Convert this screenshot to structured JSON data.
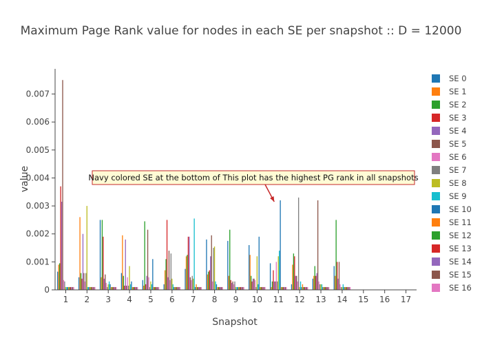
{
  "chart_data": {
    "type": "bar",
    "title": "Maximum Page Rank value for nodes in each SE per snapshot :: D = 12000",
    "xlabel": "Snapshot",
    "ylabel": "value",
    "categories": [
      "1",
      "2",
      "3",
      "4",
      "5",
      "6",
      "7",
      "8",
      "9",
      "10",
      "11",
      "12",
      "13",
      "14",
      "15",
      "16",
      "17"
    ],
    "ylim": [
      0,
      0.0079
    ],
    "yticks": [
      0,
      0.001,
      0.002,
      0.003,
      0.004,
      0.005,
      0.006,
      0.007
    ],
    "ytick_labels": [
      "0",
      "0.001",
      "0.002",
      "0.003",
      "0.004",
      "0.005",
      "0.006",
      "0.007"
    ],
    "grid": false,
    "legend": "right",
    "series": [
      {
        "name": "SE 0",
        "color": "#1f77b4",
        "values": [
          0.00065,
          0.00045,
          0.0025,
          0.0006,
          0.00035,
          0.0002,
          0.00075,
          0.0018,
          0.00175,
          0.0016,
          0.00095,
          0.0002,
          0.0004,
          0.00085,
          0,
          0,
          0
        ]
      },
      {
        "name": "SE 1",
        "color": "#ff7f0e",
        "values": [
          0.0009,
          0.0026,
          0.00045,
          0.00195,
          0.00015,
          0.0007,
          0.0012,
          0.00055,
          0.0005,
          0.00125,
          0.0001,
          0.0009,
          0.0005,
          0.0005,
          0,
          0,
          0
        ]
      },
      {
        "name": "SE 2",
        "color": "#2ca02c",
        "values": [
          0.00095,
          0.0006,
          0.0025,
          0.0005,
          0.00245,
          0.0011,
          0.00125,
          0.00065,
          0.00215,
          0.0005,
          0.0003,
          0.0013,
          0.00085,
          0.0025,
          0,
          0,
          0
        ]
      },
      {
        "name": "SE 3",
        "color": "#d62728",
        "values": [
          0.0037,
          0.0004,
          0.0019,
          0.00015,
          0.0002,
          0.0025,
          0.0019,
          0.0007,
          0.00035,
          0.0003,
          0.0007,
          0.0012,
          0.0005,
          0.001,
          0,
          0,
          0
        ]
      },
      {
        "name": "SE 4",
        "color": "#9467bd",
        "values": [
          0.00315,
          0.002,
          0.0004,
          0.0018,
          0.0005,
          0.00045,
          0.0019,
          0.0012,
          0.00025,
          0.0004,
          0.0003,
          0.0005,
          0.0006,
          0.0004,
          0,
          0,
          0
        ]
      },
      {
        "name": "SE 5",
        "color": "#8c564b",
        "values": [
          0.0075,
          0.0006,
          0.00055,
          0.00015,
          0.00215,
          0.0014,
          0.00045,
          0.00195,
          0.0003,
          0.0004,
          0.0003,
          0.0005,
          0.0032,
          0.001,
          0,
          0,
          0
        ]
      },
      {
        "name": "SE 6",
        "color": "#e377c2",
        "values": [
          0.00035,
          0.0003,
          0.00025,
          0.00045,
          0.00045,
          0.00035,
          0.00035,
          0.0003,
          0.0002,
          0.00035,
          0.001,
          0.0003,
          0.0003,
          0.0002,
          0,
          0,
          0
        ]
      },
      {
        "name": "SE 7",
        "color": "#7f7f7f",
        "values": [
          0.0003,
          0.0006,
          0.0001,
          0.00015,
          0.0001,
          0.0013,
          0.0005,
          0.0015,
          0.0003,
          0.0001,
          0.0003,
          0.0033,
          0.0002,
          0.0001,
          0,
          0,
          0
        ]
      },
      {
        "name": "SE 8",
        "color": "#bcbd22",
        "values": [
          0.0001,
          0.003,
          0.0002,
          0.00085,
          0.0003,
          0.0004,
          0.0004,
          0.00155,
          0.0001,
          0.0012,
          0.0012,
          0.0001,
          0.0002,
          0.0001,
          0,
          0,
          0
        ]
      },
      {
        "name": "SE 9",
        "color": "#17becf",
        "values": [
          0.0001,
          0.0001,
          0.0003,
          0.0002,
          0.0002,
          0.0002,
          0.00255,
          0.0003,
          0.0001,
          0.0002,
          0.0014,
          0.0003,
          0.0002,
          0.0002,
          0,
          0,
          0
        ]
      },
      {
        "name": "SE 10",
        "color": "#1f77b4",
        "values": [
          0.0001,
          0.0001,
          0.0002,
          0.0003,
          0.0011,
          0.0001,
          0.0001,
          0.0002,
          0.0001,
          0.0019,
          0.0032,
          0.0001,
          0.0001,
          0.0001,
          0,
          0,
          0
        ]
      },
      {
        "name": "SE 11",
        "color": "#ff7f0e",
        "values": [
          0.0001,
          0.0001,
          0.0001,
          0.0001,
          0.0001,
          0.0001,
          0.0002,
          0.0001,
          0.0001,
          0.0001,
          0.0001,
          0.0002,
          0.0001,
          0.0001,
          0,
          0,
          0
        ]
      },
      {
        "name": "SE 12",
        "color": "#2ca02c",
        "values": [
          0.0001,
          0.0001,
          0.0001,
          0.0001,
          0.0001,
          0.0001,
          0.0001,
          0.0001,
          0.0001,
          0.0001,
          0.0001,
          0.0001,
          0.0001,
          0.0001,
          0,
          0,
          0
        ]
      },
      {
        "name": "SE 13",
        "color": "#d62728",
        "values": [
          0.0001,
          0.0001,
          0.0001,
          0.0001,
          0.0001,
          0.0001,
          0.0001,
          0.0001,
          0.0001,
          0.0001,
          0.0001,
          0.0001,
          0.0001,
          0.0001,
          0,
          0,
          0
        ]
      },
      {
        "name": "SE 14",
        "color": "#9467bd",
        "values": [
          0.0001,
          0.0001,
          0.0001,
          0.0001,
          0.0001,
          0.0001,
          0.0001,
          0.0001,
          0.0001,
          0.0001,
          0.0001,
          0.0001,
          0.0001,
          0.0001,
          0,
          0,
          0
        ]
      },
      {
        "name": "SE 15",
        "color": "#8c564b",
        "values": [
          0.0001,
          0.0001,
          0.0001,
          0.0001,
          0.0001,
          0.0001,
          0.0001,
          0.0001,
          0.0001,
          0.0001,
          0.0001,
          0.0001,
          0.0001,
          0.0001,
          0,
          0,
          0
        ]
      },
      {
        "name": "SE 16",
        "color": "#e377c2",
        "values": [
          0.0001,
          0.0001,
          0.0001,
          0.0001,
          0.0001,
          0.0001,
          0.0001,
          0.0001,
          0.0001,
          0.0001,
          0.0001,
          0.0001,
          0.0001,
          0.0001,
          0,
          0,
          0
        ]
      }
    ],
    "annotations": [
      {
        "text": "Navy colored SE at the bottom of  This plot has the highest PG rank in all snapshots",
        "arrow_to": {
          "category": "11",
          "value": 0.0032
        }
      }
    ]
  }
}
